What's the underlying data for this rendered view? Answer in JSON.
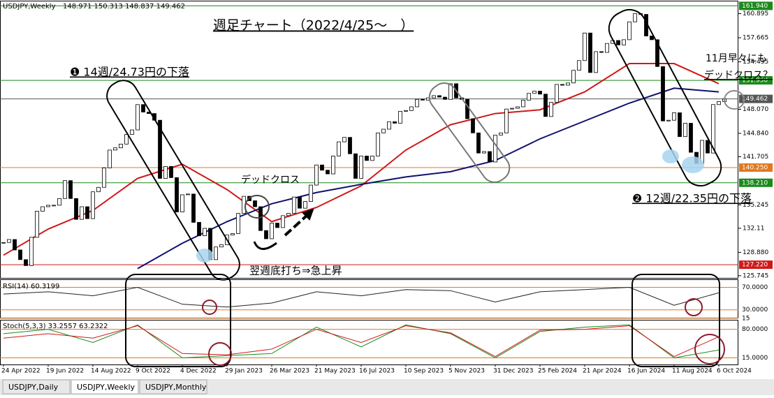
{
  "chart_data": [
    {
      "type": "candlestick",
      "title": "USDJPY,Weekly",
      "subtitle": "148.971 150.313 148.837 149.462",
      "categories": [
        "24 Apr 2022",
        null,
        null,
        null,
        null,
        null,
        null,
        null,
        "19 Jun 2022",
        null,
        null,
        null,
        null,
        null,
        null,
        null,
        "14 Aug 2022",
        null,
        null,
        null,
        null,
        null,
        null,
        null,
        "9 Oct 2022",
        null,
        null,
        null,
        null,
        null,
        null,
        null,
        "4 Dec 2022",
        null,
        null,
        null,
        null,
        null,
        null,
        null,
        "29 Jan 2023",
        null,
        null,
        null,
        null,
        null,
        null,
        null,
        "26 Mar 2023",
        null,
        null,
        null,
        null,
        null,
        null,
        null,
        "21 May 2023",
        null,
        null,
        null,
        null,
        null,
        null,
        null,
        "16 Jul 2023",
        null,
        null,
        null,
        null,
        null,
        null,
        null,
        "10 Sep 2023",
        null,
        null,
        null,
        null,
        null,
        null,
        null,
        "5 Nov 2023",
        null,
        null,
        null,
        null,
        null,
        null,
        null,
        "31 Dec 2023",
        null,
        null,
        null,
        null,
        null,
        null,
        null,
        "25 Feb 2024",
        null,
        null,
        null,
        null,
        null,
        null,
        null,
        "21 Apr 2024",
        null,
        null,
        null,
        null,
        null,
        null,
        null,
        "16 Jun 2024",
        null,
        null,
        null,
        null,
        null,
        null,
        null,
        "11 Aug 2024",
        null,
        null,
        null,
        null,
        null,
        null,
        null,
        "6 Oct 2024",
        null
      ],
      "values": [
        130.2,
        130.6,
        129.2,
        127.9,
        127.1,
        130.9,
        134.4,
        135.0,
        135.2,
        135.2,
        136.1,
        138.5,
        136.1,
        133.3,
        135.0,
        133.4,
        137.0,
        137.6,
        140.2,
        142.6,
        142.9,
        143.4,
        144.7,
        145.3,
        148.7,
        147.7,
        147.5,
        146.6,
        138.8,
        140.4,
        138.9,
        134.3,
        136.6,
        136.7,
        132.9,
        131.1,
        132.1,
        127.9,
        129.6,
        129.9,
        131.2,
        131.4,
        134.1,
        136.4,
        135.8,
        135.0,
        131.8,
        130.7,
        132.8,
        132.2,
        133.8,
        134.1,
        136.3,
        134.8,
        135.7,
        137.9,
        140.6,
        139.9,
        139.4,
        141.8,
        143.7,
        144.3,
        142.1,
        138.8,
        141.8,
        141.2,
        141.8,
        144.9,
        145.4,
        146.4,
        146.2,
        147.8,
        147.9,
        148.4,
        149.4,
        149.3,
        149.6,
        149.9,
        149.7,
        149.4,
        151.5,
        149.6,
        149.4,
        146.8,
        144.9,
        142.2,
        142.4,
        141.0,
        144.6,
        144.9,
        148.1,
        148.2,
        148.4,
        149.3,
        150.2,
        150.5,
        150.1,
        147.1,
        149.0,
        151.4,
        151.3,
        151.6,
        153.3,
        154.6,
        158.3,
        153.0,
        155.8,
        155.7,
        156.9,
        157.3,
        156.7,
        157.4,
        159.8,
        160.9,
        160.8,
        157.9,
        157.4,
        153.8,
        146.5,
        146.6,
        147.6,
        144.4,
        146.2,
        142.3,
        140.8,
        143.9,
        142.2,
        148.7,
        149.1,
        149.462
      ],
      "up_color": "#ffffff",
      "down_color": "#000000",
      "moving_averages": [
        {
          "color": "#d01818",
          "values": [
            128.5,
            132.0,
            134.5,
            138.8,
            140.7,
            137.3,
            133.0,
            134.9,
            137.8,
            142.6,
            146.0,
            147.5,
            148.0,
            150.4,
            154.2,
            154.2,
            151.5
          ]
        },
        {
          "color": "#10106e",
          "values": [
            null,
            null,
            null,
            126.7,
            130.1,
            133.0,
            135.4,
            136.9,
            138.0,
            139.0,
            139.7,
            141.2,
            144.1,
            146.5,
            148.9,
            150.9,
            150.4
          ]
        }
      ],
      "ylim": [
        125.45,
        162.54
      ],
      "yticks": [
        160.895,
        157.665,
        154.435,
        {
          "value": 148.07,
          "label": "148.070"
        },
        {
          "value": 144.84,
          "label": "144.840"
        },
        141.705,
        135.245,
        132.11,
        {
          "value": 128.88,
          "label": "128.880"
        },
        125.745
      ],
      "levels": [
        {
          "value": 161.94,
          "label": "161.940",
          "color": "#1a8a1a"
        },
        {
          "value": 151.95,
          "label": "151.950",
          "color": "#1a8a1a"
        },
        {
          "value": 149.462,
          "label": "149.462",
          "color": "#555555"
        },
        {
          "value": 140.25,
          "label": "140.250",
          "color": "#e07820"
        },
        {
          "value": 138.21,
          "label": "138.210",
          "color": "#1a8a1a"
        },
        {
          "value": 127.22,
          "label": "127.220",
          "color": "#d01818"
        }
      ],
      "annotations": [
        "週足チャート（2022/4/25〜　）",
        "❶ 14週/24.73円の下落",
        "デッドクロス",
        "翌週底打ち⇒急上昇",
        "11月早々にも",
        "デッドクロス？",
        "❷ 12週/22.35円の下落"
      ]
    },
    {
      "type": "line",
      "title": "RSI(14) 60.3199",
      "values": [
        58,
        62,
        55,
        70,
        40,
        35,
        42,
        62,
        55,
        66,
        64,
        44,
        62,
        66,
        70,
        38,
        60.3
      ],
      "color": "#222222",
      "ylim": [
        16,
        83
      ],
      "yticks": [
        {
          "value": 70,
          "label": "70.0000"
        },
        {
          "value": 30,
          "label": "30.0000"
        },
        15
      ],
      "level_color": "#e07820"
    },
    {
      "type": "line",
      "title": "Stoch(5,3,3) 33.2557 63.2322",
      "series": [
        {
          "color": "#1a8a1a",
          "values": [
            70,
            80,
            50,
            90,
            15,
            20,
            25,
            85,
            40,
            90,
            70,
            15,
            75,
            85,
            90,
            15,
            33
          ]
        },
        {
          "color": "#d01818",
          "values": [
            60,
            70,
            60,
            88,
            25,
            22,
            35,
            80,
            50,
            88,
            72,
            18,
            78,
            80,
            88,
            18,
            63
          ]
        }
      ],
      "ylim": [
        0,
        100
      ],
      "yticks": [
        {
          "value": 80,
          "label": "80.0000"
        },
        {
          "value": 15,
          "label": "15.0000"
        }
      ],
      "level_color": "#e07820"
    }
  ],
  "tabs": [
    "USDJPY,Daily",
    "USDJPY,Weekly",
    "USDJPY,Monthly"
  ]
}
